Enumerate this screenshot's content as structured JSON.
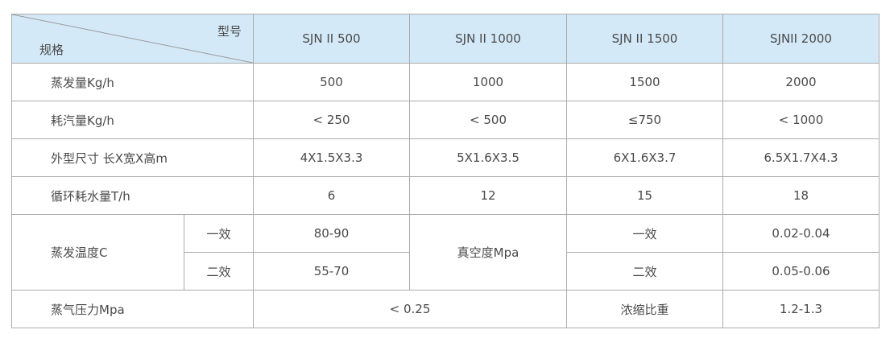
{
  "header": {
    "corner_top": "型号",
    "corner_bottom": "规格",
    "models": [
      "SJN II 500",
      "SJN II 1000",
      "SJN II 1500",
      "SJNII 2000"
    ]
  },
  "rows": {
    "evaporation": {
      "label": "蒸发量Kg/h",
      "values": [
        "500",
        "1000",
        "1500",
        "2000"
      ]
    },
    "steam_use": {
      "label": "耗汽量Kg/h",
      "values": [
        "< 250",
        "< 500",
        "≤750",
        "< 1000"
      ]
    },
    "dimensions": {
      "label": "外型尺寸 长X宽X高m",
      "values": [
        "4X1.5X3.3",
        "5X1.6X3.5",
        "6X1.6X3.7",
        "6.5X1.7X4.3"
      ]
    },
    "water_use": {
      "label": "循环耗水量T/h",
      "values": [
        "6",
        "12",
        "15",
        "18"
      ]
    },
    "evap_temp": {
      "label": "蒸发温度C",
      "effect1": "一效",
      "effect1_value": "80-90",
      "effect2": "二效",
      "effect2_value": "55-70",
      "vacuum_label": "真空度Mpa",
      "vac_effect1": "一效",
      "vac_effect1_value": "0.02-0.04",
      "vac_effect2": "二效",
      "vac_effect2_value": "0.05-0.06"
    },
    "steam_pressure": {
      "label": "蒸气压力Mpa",
      "value": "< 0.25",
      "density_label": "浓缩比重",
      "density_value": "1.2-1.3"
    }
  }
}
